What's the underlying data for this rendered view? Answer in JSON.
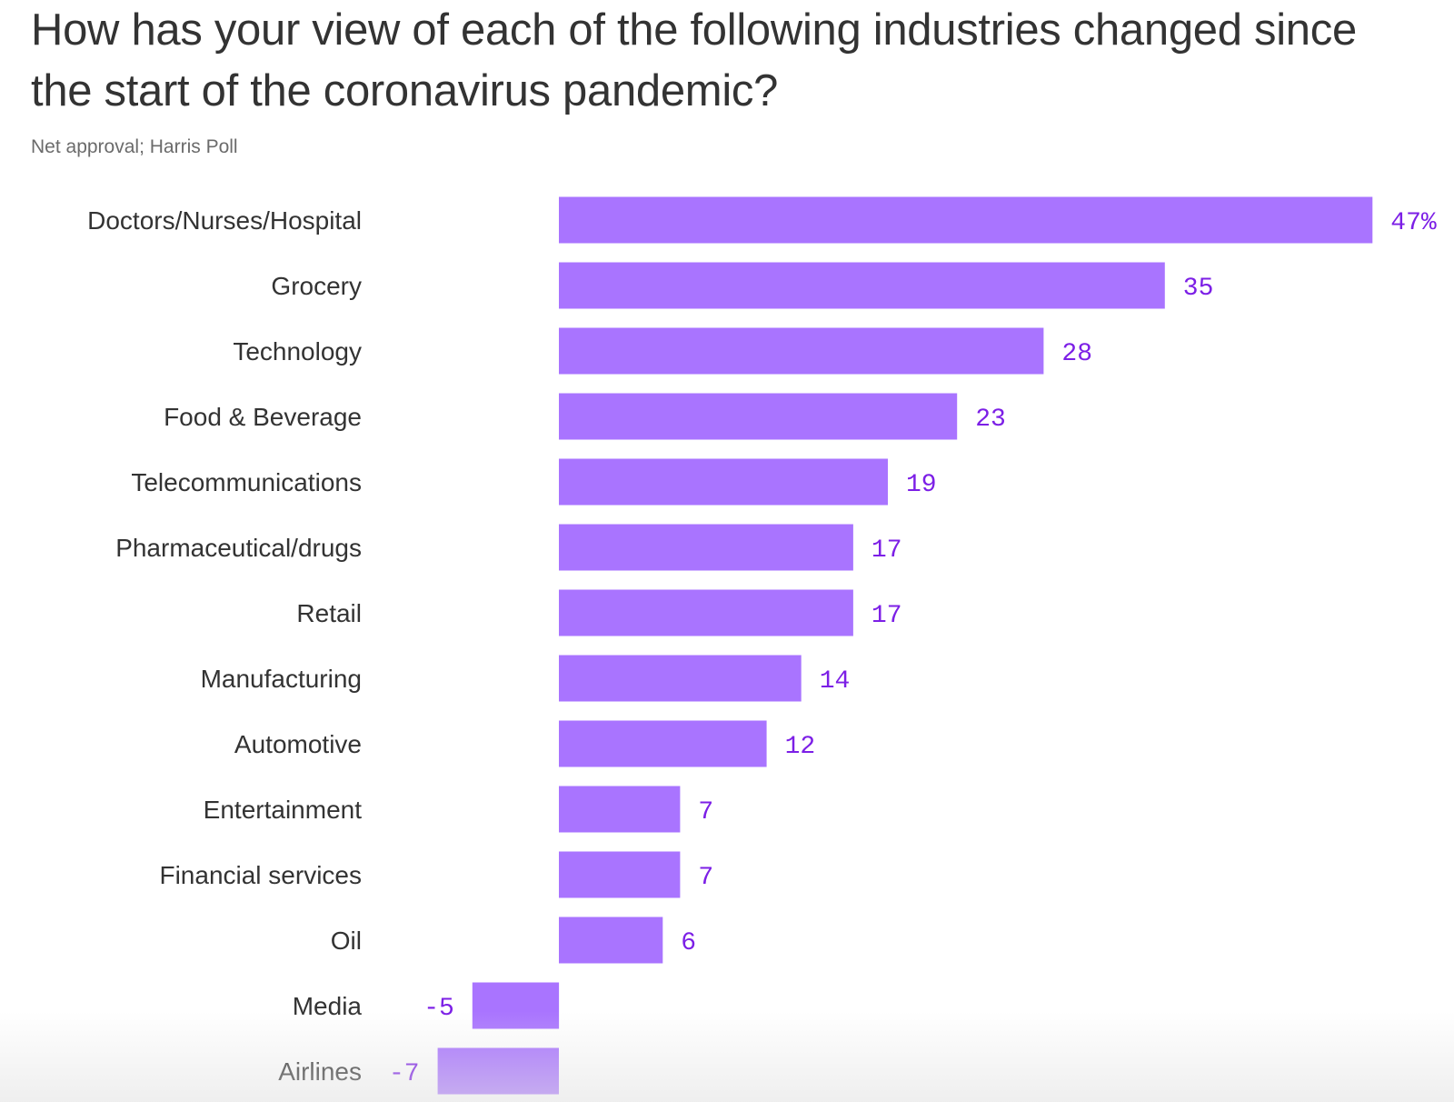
{
  "chart_data": {
    "type": "bar",
    "orientation": "horizontal",
    "title": "How has your view of each of the following industries changed since the start of the coronavirus pandemic?",
    "subtitle": "Net approval; Harris Poll",
    "categories": [
      "Doctors/Nurses/Hospital",
      "Grocery",
      "Technology",
      "Food & Beverage",
      "Telecommunications",
      "Pharmaceutical/drugs",
      "Retail",
      "Manufacturing",
      "Automotive",
      "Entertainment",
      "Financial services",
      "Oil",
      "Media",
      "Airlines"
    ],
    "values": [
      47,
      35,
      28,
      23,
      19,
      17,
      17,
      14,
      12,
      7,
      7,
      6,
      -5,
      -7
    ],
    "value_labels": [
      "47%",
      "35",
      "28",
      "23",
      "19",
      "17",
      "17",
      "14",
      "12",
      "7",
      "7",
      "6",
      "-5",
      "-7"
    ],
    "xlabel": "",
    "ylabel": "",
    "xlim": [
      -7,
      47
    ],
    "grid": false,
    "bar_color": "#a974ff",
    "label_color": "#7c1fe6"
  }
}
